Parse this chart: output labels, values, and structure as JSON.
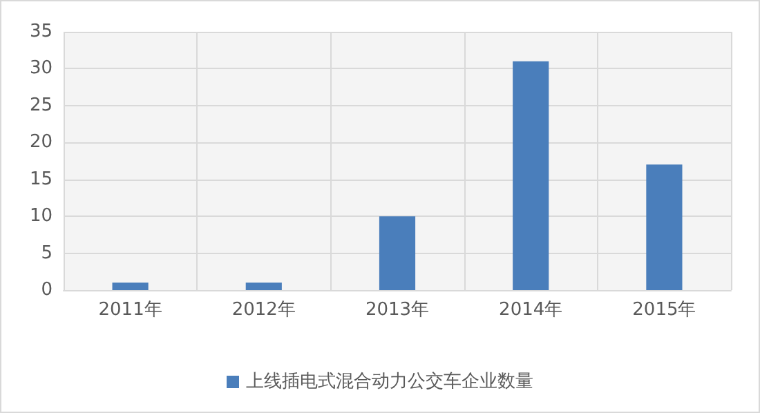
{
  "chart_data": {
    "type": "bar",
    "categories": [
      "2011年",
      "2012年",
      "2013年",
      "2014年",
      "2015年"
    ],
    "series": [
      {
        "name": "上线插电式混合动力公交车企业数量",
        "color": "#4a7ebb",
        "values": [
          1,
          1,
          10,
          31,
          17
        ]
      }
    ],
    "ylim": [
      0,
      35
    ],
    "yticks": [
      0,
      5,
      10,
      15,
      20,
      25,
      30,
      35
    ],
    "grid": true,
    "legend": "bottom"
  }
}
